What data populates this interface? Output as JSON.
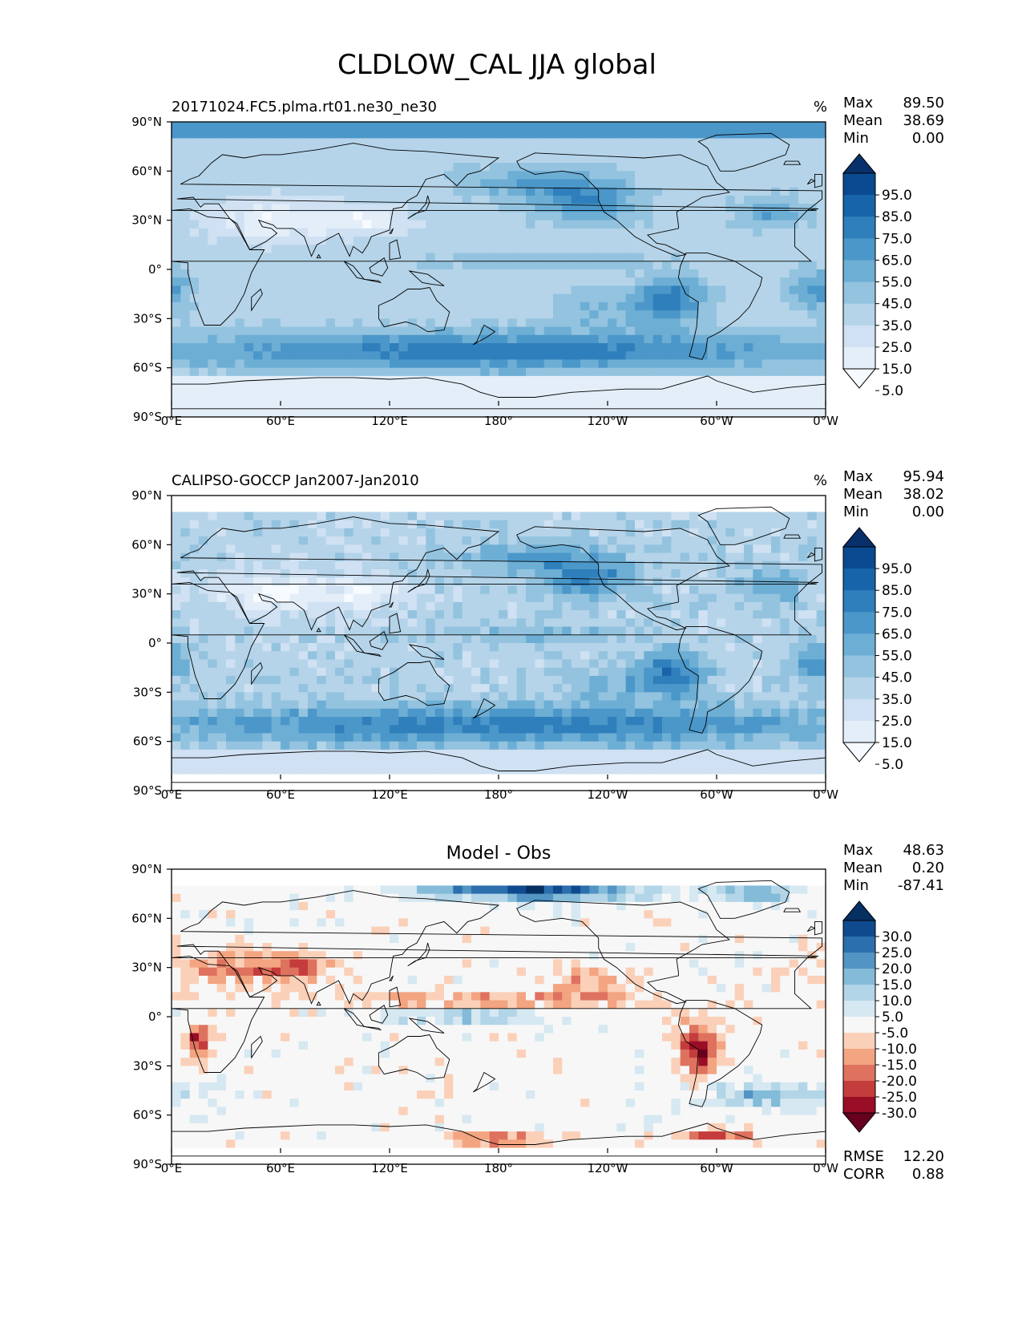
{
  "figure": {
    "title": "CLDLOW_CAL JJA global"
  },
  "colors": {
    "seq": [
      "#f7fbff",
      "#e3eef9",
      "#cfe1f2",
      "#b5d4e9",
      "#93c3df",
      "#6daed5",
      "#4b97c9",
      "#2f7fbc",
      "#1864aa",
      "#0a4a90",
      "#08306b"
    ],
    "div": [
      "#67001f",
      "#9a0d26",
      "#c43c3c",
      "#de725f",
      "#f3a481",
      "#fbd0b9",
      "#f7f7f7",
      "#d6e8f1",
      "#b2d5e7",
      "#83bbd8",
      "#5294c4",
      "#2c6fad",
      "#104a8e",
      "#053061"
    ],
    "land_outline": "#000000"
  },
  "chart_data": [
    {
      "type": "heatmap",
      "subtitle_left": "20171024.FC5.plma.rt01.ne30_ne30",
      "units": "%",
      "stats": {
        "max_label": "Max",
        "max": "89.50",
        "mean_label": "Mean",
        "mean": "38.69",
        "min_label": "Min",
        "min": "0.00"
      },
      "colorbar": {
        "ticks": [
          "95.0",
          "85.0",
          "75.0",
          "65.0",
          "55.0",
          "45.0",
          "35.0",
          "25.0",
          "15.0",
          "5.0"
        ],
        "levels": [
          0,
          5,
          15,
          25,
          35,
          45,
          55,
          65,
          75,
          85,
          95,
          100
        ]
      },
      "xticks": [
        "0°E",
        "60°E",
        "120°E",
        "180°",
        "120°W",
        "60°W",
        "0°W"
      ],
      "yticks": [
        "90°N",
        "60°N",
        "30°N",
        "0°",
        "30°S",
        "60°S",
        "90°S"
      ],
      "xlim": [
        0,
        360
      ],
      "ylim": [
        -90,
        90
      ]
    },
    {
      "type": "heatmap",
      "subtitle_left": "CALIPSO-GOCCP Jan2007-Jan2010",
      "units": "%",
      "stats": {
        "max_label": "Max",
        "max": "95.94",
        "mean_label": "Mean",
        "mean": "38.02",
        "min_label": "Min",
        "min": "0.00"
      },
      "colorbar": {
        "ticks": [
          "95.0",
          "85.0",
          "75.0",
          "65.0",
          "55.0",
          "45.0",
          "35.0",
          "25.0",
          "15.0",
          "5.0"
        ],
        "levels": [
          0,
          5,
          15,
          25,
          35,
          45,
          55,
          65,
          75,
          85,
          95,
          100
        ]
      },
      "xticks": [
        "0°E",
        "60°E",
        "120°E",
        "180°",
        "120°W",
        "60°W",
        "0°W"
      ],
      "yticks": [
        "90°N",
        "60°N",
        "30°N",
        "0°",
        "30°S",
        "60°S",
        "90°S"
      ],
      "xlim": [
        0,
        360
      ],
      "ylim": [
        -90,
        90
      ]
    },
    {
      "type": "heatmap",
      "subtitle_center": "Model - Obs",
      "stats": {
        "max_label": "Max",
        "max": "48.63",
        "mean_label": "Mean",
        "mean": "0.20",
        "min_label": "Min",
        "min": "-87.41"
      },
      "metrics": {
        "rmse_label": "RMSE",
        "rmse": "12.20",
        "corr_label": "CORR",
        "corr": "0.88"
      },
      "colorbar": {
        "ticks": [
          "30.0",
          "25.0",
          "20.0",
          "15.0",
          "10.0",
          "5.0",
          "-5.0",
          "-10.0",
          "-15.0",
          "-20.0",
          "-25.0",
          "-30.0"
        ],
        "levels": [
          -35,
          -30,
          -25,
          -20,
          -15,
          -10,
          -5,
          5,
          10,
          15,
          20,
          25,
          30,
          35
        ]
      },
      "xticks": [
        "0°E",
        "60°E",
        "120°E",
        "180°",
        "120°W",
        "60°W",
        "0°W"
      ],
      "yticks": [
        "90°N",
        "60°N",
        "30°N",
        "0°",
        "30°S",
        "60°S",
        "90°S"
      ],
      "xlim": [
        0,
        360
      ],
      "ylim": [
        -90,
        90
      ]
    }
  ]
}
